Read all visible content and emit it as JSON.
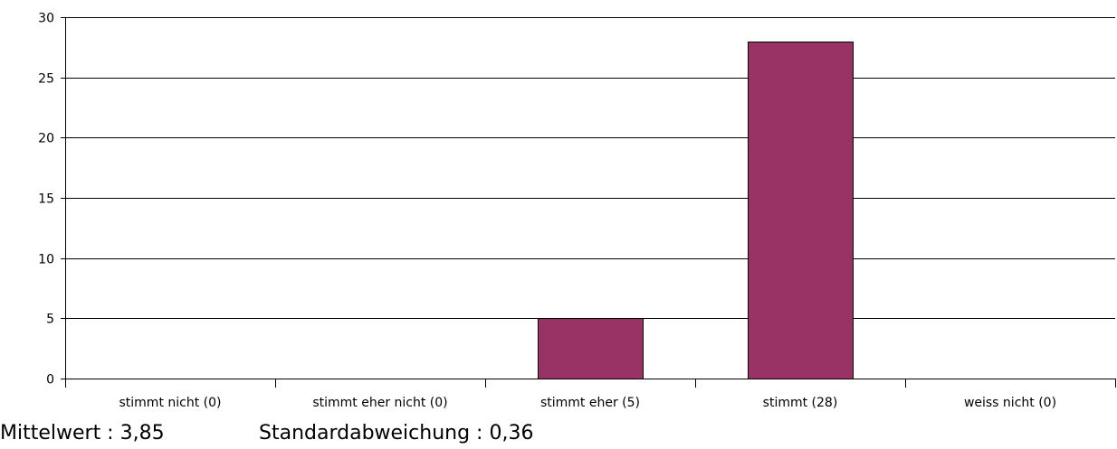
{
  "chart_data": {
    "type": "bar",
    "categories": [
      "stimmt nicht (0)",
      "stimmt eher nicht (0)",
      "stimmt eher (5)",
      "stimmt  (28)",
      "weiss nicht (0)"
    ],
    "values": [
      0,
      0,
      5,
      28,
      0
    ],
    "ylim": [
      0,
      30
    ],
    "yticks": [
      0,
      5,
      10,
      15,
      20,
      25,
      30
    ],
    "grid": true,
    "bar_color": "#993366"
  },
  "stats": {
    "mean": "Mittelwert : 3,85",
    "std_dev": "Standardabweichung : 0,36"
  }
}
